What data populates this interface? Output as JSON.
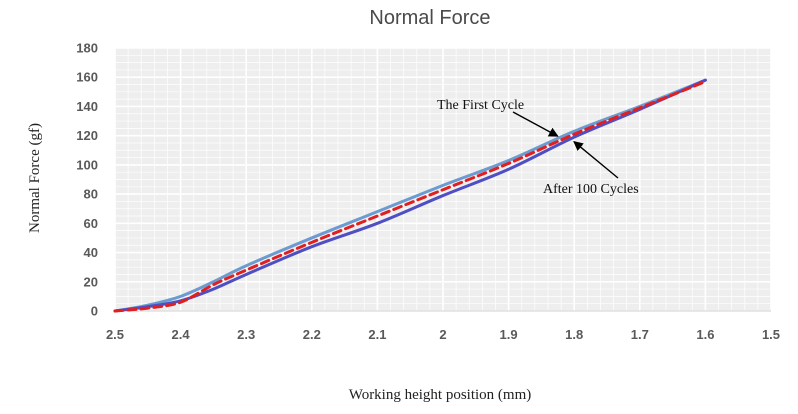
{
  "chart_data": {
    "type": "line",
    "title": "Normal Force",
    "xlabel": "Working height position (mm)",
    "ylabel": "Normal Force (gf)",
    "x_reversed": true,
    "xlim": [
      2.5,
      1.5
    ],
    "ylim": [
      0,
      180
    ],
    "x_ticks": [
      "2.5",
      "2.4",
      "2.3",
      "2.2",
      "2.1",
      "2",
      "1.9",
      "1.8",
      "1.7",
      "1.6",
      "1.5"
    ],
    "y_ticks": [
      "0",
      "20",
      "40",
      "60",
      "80",
      "100",
      "120",
      "140",
      "160",
      "180"
    ],
    "grid": true,
    "legend": "none",
    "series": [
      {
        "color": "#6b9bd1",
        "style": "solid",
        "x": [
          2.5,
          2.45,
          2.4,
          2.35,
          2.3,
          2.2,
          2.1,
          2.0,
          1.9,
          1.8,
          1.7,
          1.6
        ],
        "values": [
          0,
          4,
          10,
          20,
          31,
          50,
          68,
          86,
          103,
          123,
          140,
          158
        ]
      },
      {
        "color": "#4f4fc4",
        "style": "solid",
        "x": [
          2.5,
          2.45,
          2.4,
          2.35,
          2.3,
          2.2,
          2.1,
          2.0,
          1.9,
          1.8,
          1.7,
          1.6
        ],
        "values": [
          0,
          3,
          7,
          15,
          25,
          44,
          60,
          79,
          97,
          119,
          138,
          158
        ]
      },
      {
        "color": "#e02020",
        "style": "dashed",
        "x": [
          2.5,
          2.45,
          2.4,
          2.35,
          2.3,
          2.2,
          2.1,
          2.0,
          1.9,
          1.8,
          1.7,
          1.6
        ],
        "values": [
          0,
          2,
          6,
          18,
          28,
          47,
          65,
          83,
          101,
          121,
          139,
          157
        ]
      }
    ],
    "annotations": [
      {
        "text": "The First Cycle",
        "target_x": 1.825,
        "target_y": 121
      },
      {
        "text": "After 100 Cycles",
        "target_x": 1.805,
        "target_y": 118
      }
    ]
  }
}
